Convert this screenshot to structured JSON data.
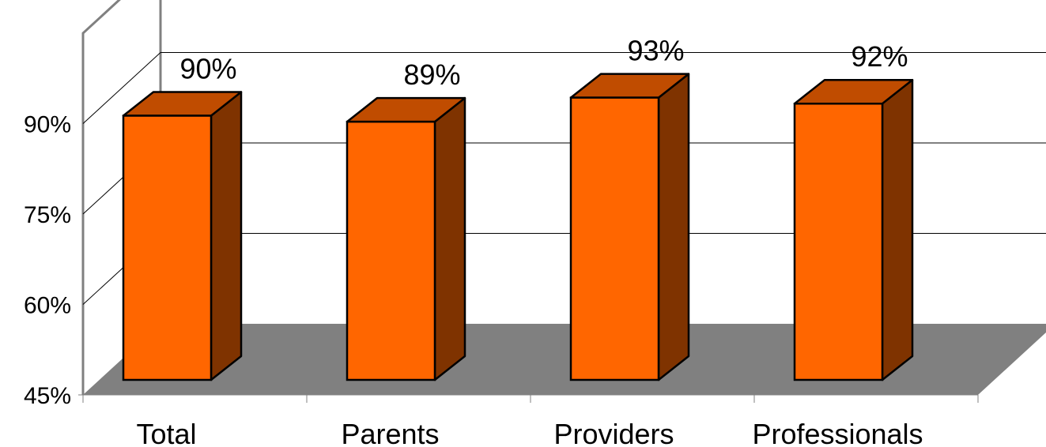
{
  "chart_data": {
    "type": "bar",
    "title": "",
    "xlabel": "",
    "ylabel": "",
    "categories": [
      "Total",
      "Parents",
      "Providers",
      "Professionals"
    ],
    "values": [
      90,
      89,
      93,
      92
    ],
    "value_labels": [
      "90%",
      "89%",
      "93%",
      "92%"
    ],
    "ylim": [
      45,
      105
    ],
    "y_ticks": [
      {
        "value": 45,
        "label": "45%"
      },
      {
        "value": 60,
        "label": "60%"
      },
      {
        "value": 75,
        "label": "75%"
      },
      {
        "value": 90,
        "label": "90%"
      }
    ],
    "grid": true,
    "legend": "none",
    "three_d": true,
    "colors": {
      "bar_front": "#FF6600",
      "bar_top": "#C04C00",
      "bar_side": "#7F3300",
      "floor": "#808080",
      "wall": "#808080",
      "gridline": "#000000"
    }
  }
}
